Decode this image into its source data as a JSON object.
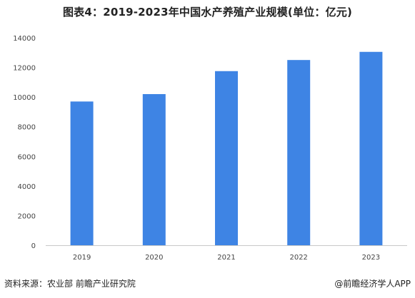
{
  "title": "图表4：2019-2023年中国水产养殖产业规模(单位：亿元)",
  "footer": {
    "source": "资料来源：农业部 前瞻产业研究院",
    "brand": "@前瞻经济学人APP"
  },
  "colors": {
    "bar": "#3e84e4",
    "axis": "#c8c8c8",
    "text": "#444444"
  },
  "chart_data": {
    "type": "bar",
    "categories": [
      "2019",
      "2020",
      "2021",
      "2022",
      "2023"
    ],
    "values": [
      9700,
      10200,
      11750,
      12500,
      13050
    ],
    "ylim": [
      0,
      14000
    ],
    "yticks": [
      0,
      2000,
      4000,
      6000,
      8000,
      10000,
      12000,
      14000
    ],
    "grid": false,
    "legend": "none"
  }
}
